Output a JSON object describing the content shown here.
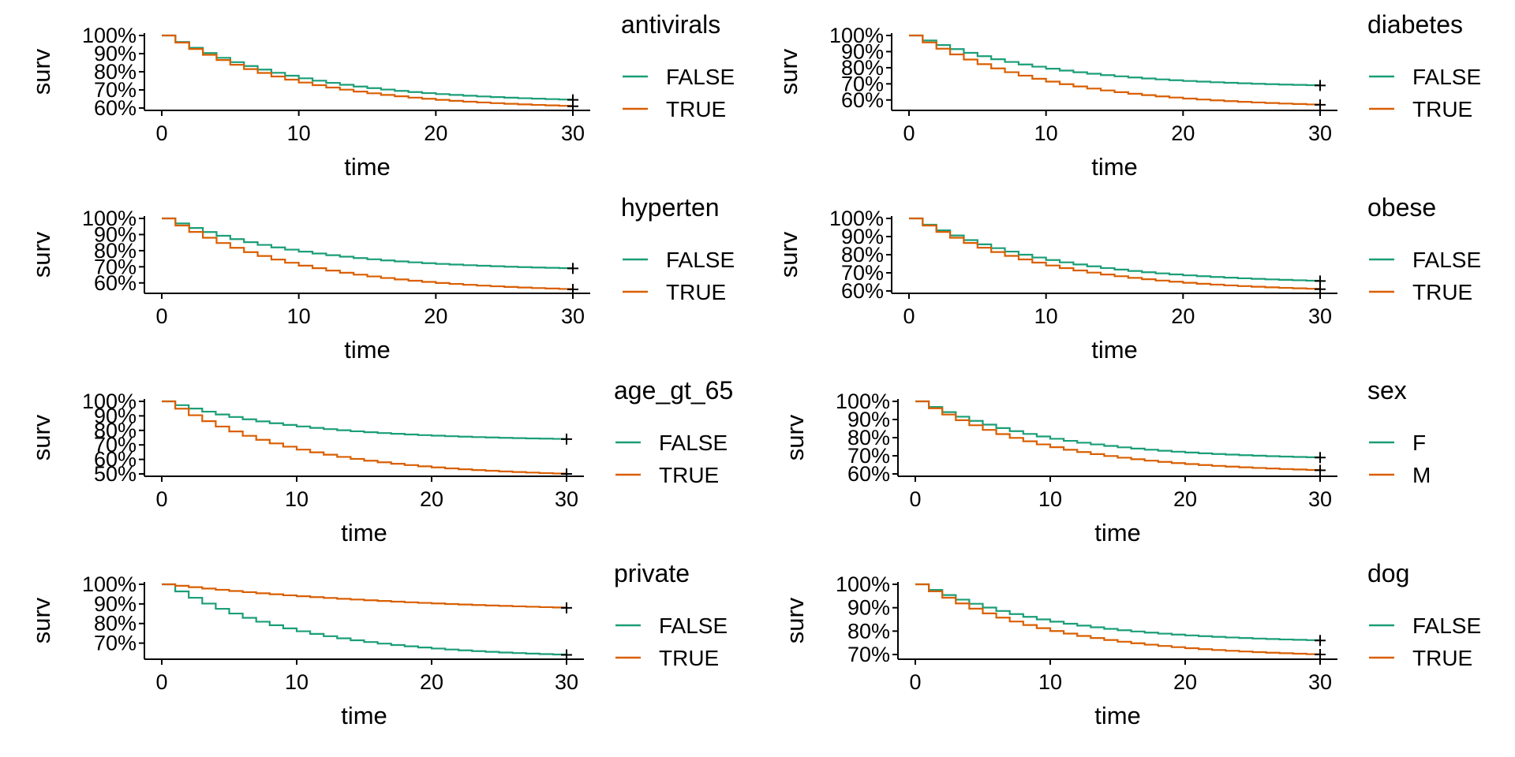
{
  "chart_data": [
    {
      "type": "line",
      "xlabel": "time",
      "ylabel": "surv",
      "legend_title": "antivirals",
      "legend_placement": "right",
      "grid": false,
      "xlim": [
        0,
        30
      ],
      "x_ticks": [
        "0",
        "10",
        "20",
        "30"
      ],
      "ylim": [
        0.6,
        1.0
      ],
      "y_ticks": [
        "60%",
        "70%",
        "80%",
        "90%",
        "100%"
      ],
      "series": [
        {
          "name": "FALSE",
          "color": "#1b9e77",
          "rate": 0.1,
          "y_start": 1.0,
          "y_end": 0.645
        },
        {
          "name": "TRUE",
          "color": "#d95f02",
          "rate": 0.1,
          "y_start": 1.0,
          "y_end": 0.61
        }
      ]
    },
    {
      "type": "line",
      "xlabel": "time",
      "ylabel": "surv",
      "legend_title": "diabetes",
      "legend_placement": "right",
      "grid": false,
      "xlim": [
        0,
        30
      ],
      "x_ticks": [
        "0",
        "10",
        "20",
        "30"
      ],
      "ylim": [
        0.55,
        1.0
      ],
      "y_ticks": [
        "60%",
        "70%",
        "80%",
        "90%",
        "100%"
      ],
      "series": [
        {
          "name": "FALSE",
          "color": "#1b9e77",
          "rate": 0.1,
          "y_start": 1.0,
          "y_end": 0.69
        },
        {
          "name": "TRUE",
          "color": "#d95f02",
          "rate": 0.1,
          "y_start": 1.0,
          "y_end": 0.57
        }
      ]
    },
    {
      "type": "line",
      "xlabel": "time",
      "ylabel": "surv",
      "legend_title": "hyperten",
      "legend_placement": "right",
      "grid": false,
      "xlim": [
        0,
        30
      ],
      "x_ticks": [
        "0",
        "10",
        "20",
        "30"
      ],
      "ylim": [
        0.55,
        1.0
      ],
      "y_ticks": [
        "60%",
        "70%",
        "80%",
        "90%",
        "100%"
      ],
      "series": [
        {
          "name": "FALSE",
          "color": "#1b9e77",
          "rate": 0.1,
          "y_start": 1.0,
          "y_end": 0.69
        },
        {
          "name": "TRUE",
          "color": "#d95f02",
          "rate": 0.1,
          "y_start": 1.0,
          "y_end": 0.56
        }
      ]
    },
    {
      "type": "line",
      "xlabel": "time",
      "ylabel": "surv",
      "legend_title": "obese",
      "legend_placement": "right",
      "grid": false,
      "xlim": [
        0,
        30
      ],
      "x_ticks": [
        "0",
        "10",
        "20",
        "30"
      ],
      "ylim": [
        0.6,
        1.0
      ],
      "y_ticks": [
        "60%",
        "70%",
        "80%",
        "90%",
        "100%"
      ],
      "series": [
        {
          "name": "FALSE",
          "color": "#1b9e77",
          "rate": 0.1,
          "y_start": 1.0,
          "y_end": 0.655
        },
        {
          "name": "TRUE",
          "color": "#d95f02",
          "rate": 0.1,
          "y_start": 1.0,
          "y_end": 0.61
        }
      ]
    },
    {
      "type": "line",
      "xlabel": "time",
      "ylabel": "surv",
      "legend_title": "age_gt_65",
      "legend_placement": "right",
      "grid": false,
      "xlim": [
        0,
        30
      ],
      "x_ticks": [
        "0",
        "10",
        "20",
        "30"
      ],
      "ylim": [
        0.5,
        1.0
      ],
      "y_ticks": [
        "50%",
        "60%",
        "70%",
        "80%",
        "90%",
        "100%"
      ],
      "series": [
        {
          "name": "FALSE",
          "color": "#1b9e77",
          "rate": 0.1,
          "y_start": 1.0,
          "y_end": 0.74
        },
        {
          "name": "TRUE",
          "color": "#d95f02",
          "rate": 0.1,
          "y_start": 1.0,
          "y_end": 0.5
        }
      ]
    },
    {
      "type": "line",
      "xlabel": "time",
      "ylabel": "surv",
      "legend_title": "sex",
      "legend_placement": "right",
      "grid": false,
      "xlim": [
        0,
        30
      ],
      "x_ticks": [
        "0",
        "10",
        "20",
        "30"
      ],
      "ylim": [
        0.6,
        1.0
      ],
      "y_ticks": [
        "60%",
        "70%",
        "80%",
        "90%",
        "100%"
      ],
      "series": [
        {
          "name": "F",
          "color": "#1b9e77",
          "rate": 0.1,
          "y_start": 1.0,
          "y_end": 0.69
        },
        {
          "name": "M",
          "color": "#d95f02",
          "rate": 0.1,
          "y_start": 1.0,
          "y_end": 0.62
        }
      ]
    },
    {
      "type": "line",
      "xlabel": "time",
      "ylabel": "surv",
      "legend_title": "private",
      "legend_placement": "right",
      "grid": false,
      "xlim": [
        0,
        30
      ],
      "x_ticks": [
        "0",
        "10",
        "20",
        "30"
      ],
      "ylim": [
        0.63,
        1.0
      ],
      "y_ticks": [
        "70%",
        "80%",
        "90%",
        "100%"
      ],
      "series": [
        {
          "name": "FALSE",
          "color": "#1b9e77",
          "rate": 0.1,
          "y_start": 1.0,
          "y_end": 0.64
        },
        {
          "name": "TRUE",
          "color": "#d95f02",
          "rate": 0.05,
          "y_start": 1.0,
          "y_end": 0.88
        }
      ]
    },
    {
      "type": "line",
      "xlabel": "time",
      "ylabel": "surv",
      "legend_title": "dog",
      "legend_placement": "right",
      "grid": false,
      "xlim": [
        0,
        30
      ],
      "x_ticks": [
        "0",
        "10",
        "20",
        "30"
      ],
      "ylim": [
        0.69,
        1.0
      ],
      "y_ticks": [
        "70%",
        "80%",
        "90%",
        "100%"
      ],
      "series": [
        {
          "name": "FALSE",
          "color": "#1b9e77",
          "rate": 0.1,
          "y_start": 1.0,
          "y_end": 0.76
        },
        {
          "name": "TRUE",
          "color": "#d95f02",
          "rate": 0.1,
          "y_start": 1.0,
          "y_end": 0.7
        }
      ]
    }
  ]
}
